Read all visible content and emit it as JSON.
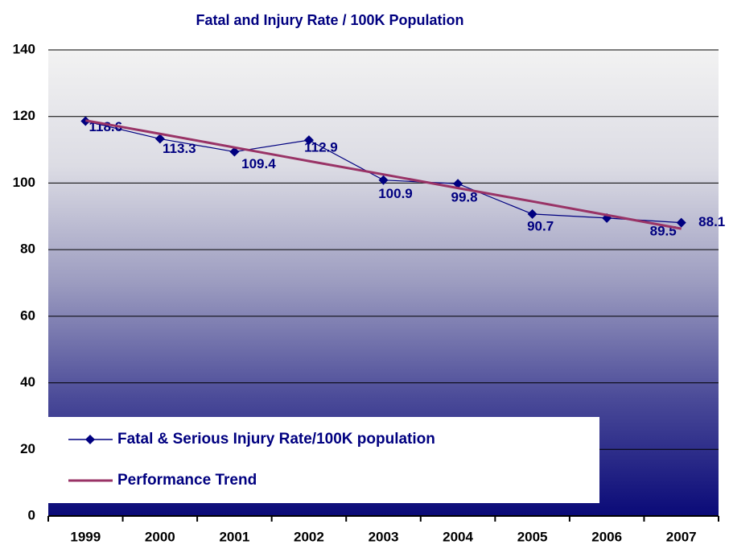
{
  "chart_data": {
    "type": "line",
    "title": "Fatal and Injury Rate / 100K Population",
    "categories": [
      "1999",
      "2000",
      "2001",
      "2002",
      "2003",
      "2004",
      "2005",
      "2006",
      "2007"
    ],
    "series": [
      {
        "name": "Fatal & Serious Injury Rate/100K population",
        "color": "#000080",
        "values": [
          118.6,
          113.3,
          109.4,
          112.9,
          100.9,
          99.8,
          90.7,
          89.5,
          88.1
        ]
      },
      {
        "name": "Performance Trend",
        "color": "#993366",
        "values": [
          118.8,
          114.8,
          110.7,
          106.6,
          102.6,
          98.5,
          94.5,
          90.4,
          86.3
        ]
      }
    ],
    "ylim": [
      0,
      140
    ],
    "yticks": [
      0,
      20,
      40,
      60,
      80,
      100,
      120,
      140
    ],
    "grid": true
  }
}
